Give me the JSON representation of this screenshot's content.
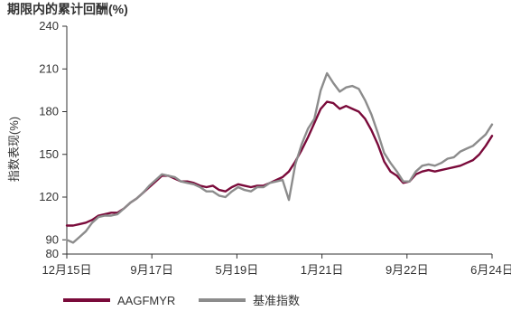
{
  "chart_data": {
    "type": "line",
    "title": "期限内的累计回酬(%)",
    "ylabel": "指数表现(%)",
    "xlabel": "",
    "ylim": [
      80,
      240
    ],
    "yticks": [
      80,
      90,
      120,
      150,
      180,
      210,
      240
    ],
    "x_ticks": [
      "12月15日",
      "9月17日",
      "5月19日",
      "1月21日",
      "9月22日",
      "6月24日"
    ],
    "grid": false,
    "legend_position": "bottom-left",
    "series": [
      {
        "name": "AAGFMYR",
        "color": "#7a0a3a",
        "values": [
          100,
          100,
          101,
          102,
          104,
          107,
          108,
          109,
          109,
          112,
          116,
          119,
          123,
          127,
          131,
          135,
          135,
          133,
          131,
          131,
          130,
          128,
          127,
          128,
          125,
          124,
          127,
          129,
          128,
          127,
          128,
          128,
          130,
          132,
          134,
          138,
          145,
          153,
          162,
          172,
          182,
          187,
          186,
          182,
          184,
          182,
          180,
          175,
          167,
          157,
          145,
          138,
          135,
          130,
          131,
          136,
          138,
          139,
          138,
          139,
          140,
          141,
          142,
          144,
          146,
          150,
          156,
          163
        ]
      },
      {
        "name": "基准指数",
        "color": "#8c8c8c",
        "values": [
          90,
          88,
          92,
          96,
          102,
          106,
          107,
          107,
          108,
          112,
          116,
          119,
          123,
          128,
          132,
          136,
          135,
          134,
          131,
          130,
          129,
          127,
          124,
          124,
          121,
          120,
          124,
          127,
          125,
          124,
          127,
          127,
          130,
          131,
          132,
          118,
          143,
          157,
          168,
          175,
          195,
          207,
          200,
          194,
          197,
          198,
          196,
          188,
          178,
          165,
          151,
          144,
          138,
          131,
          131,
          138,
          142,
          143,
          142,
          144,
          147,
          148,
          152,
          154,
          156,
          160,
          164,
          171
        ]
      }
    ]
  }
}
